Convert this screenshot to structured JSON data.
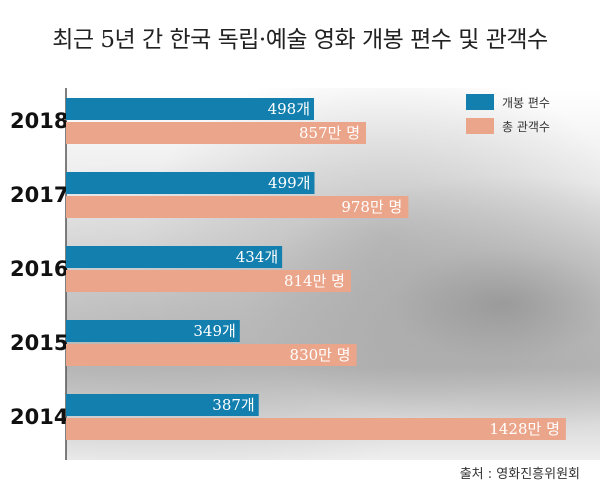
{
  "title": "최근 5년 간 한국 독립·예술 영화 개봉 편수 및 관객수",
  "source": "출처 : 영화진흥위원회",
  "colors": {
    "blue": "#127fae",
    "salmon": "#eba58a"
  },
  "chart_data": {
    "type": "bar",
    "orientation": "horizontal",
    "categories": [
      "2018",
      "2017",
      "2016",
      "2015",
      "2014"
    ],
    "series": [
      {
        "name": "개봉 편수",
        "values": [
          498,
          499,
          434,
          349,
          387
        ],
        "labels": [
          "498개",
          "499개",
          "434개",
          "349개",
          "387개"
        ]
      },
      {
        "name": "총 관객수",
        "values": [
          857,
          978,
          814,
          830,
          1428
        ],
        "labels": [
          "857만 명",
          "978만 명",
          "814만 명",
          "830만 명",
          "1428만 명"
        ]
      }
    ],
    "legend": "top-right",
    "grid": false
  }
}
